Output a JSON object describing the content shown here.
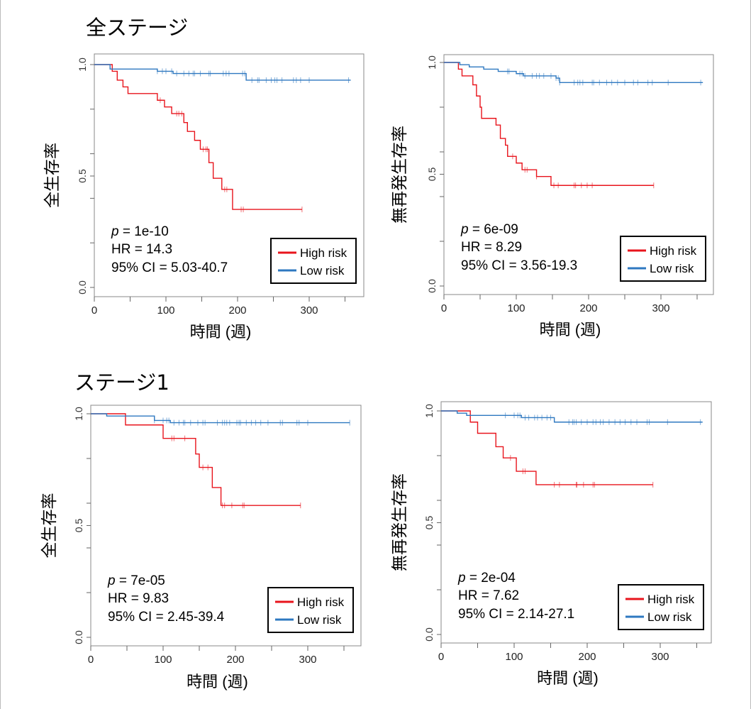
{
  "sections": [
    {
      "title": "全ステージ"
    },
    {
      "title": "ステージ1"
    }
  ],
  "colors": {
    "high": "#e8141c",
    "low": "#2e78c0",
    "frame": "#888888"
  },
  "chart_data": [
    {
      "type": "line",
      "subtype": "kaplan-meier",
      "xlabel": "時間 (週)",
      "ylabel": "全生存率",
      "xlim": [
        0,
        360
      ],
      "ylim": [
        0,
        1
      ],
      "xticks": [
        0,
        100,
        200,
        300
      ],
      "yticks": [
        "0.0",
        "0.5",
        "1.0"
      ],
      "stats": {
        "p": "p",
        "p_rest": " = 1e-10",
        "hr": "HR = 14.3",
        "ci": "95% CI = 5.03-40.7"
      },
      "legend": [
        "High risk",
        "Low risk"
      ],
      "legend_position": "bottom-right",
      "series": [
        {
          "name": "High risk",
          "end": 290,
          "steps": [
            [
              25,
              0.97
            ],
            [
              32,
              0.93
            ],
            [
              40,
              0.9
            ],
            [
              47,
              0.87
            ],
            [
              88,
              0.84
            ],
            [
              98,
              0.81
            ],
            [
              108,
              0.78
            ],
            [
              125,
              0.74
            ],
            [
              130,
              0.7
            ],
            [
              140,
              0.66
            ],
            [
              148,
              0.62
            ],
            [
              160,
              0.56
            ],
            [
              166,
              0.49
            ],
            [
              178,
              0.44
            ],
            [
              193,
              0.35
            ]
          ],
          "censored": [
            92,
            115,
            118,
            122,
            152,
            156,
            158,
            182,
            185,
            205,
            208,
            290
          ]
        },
        {
          "name": "Low risk",
          "end": 358,
          "steps": [
            [
              22,
              0.98
            ],
            [
              88,
              0.97
            ],
            [
              110,
              0.96
            ],
            [
              212,
              0.93
            ]
          ],
          "censored": [
            88,
            95,
            100,
            108,
            115,
            125,
            132,
            138,
            140,
            148,
            160,
            162,
            180,
            184,
            188,
            207,
            210,
            220,
            228,
            230,
            240,
            247,
            252,
            255,
            262,
            278,
            282,
            288,
            300,
            355
          ]
        }
      ]
    },
    {
      "type": "line",
      "subtype": "kaplan-meier",
      "xlabel": "時間 (週)",
      "ylabel": "無再発生存率",
      "xlim": [
        0,
        360
      ],
      "ylim": [
        0,
        1
      ],
      "xticks": [
        0,
        100,
        200,
        300
      ],
      "yticks": [
        "0.0",
        "0.5",
        "1.0"
      ],
      "stats": {
        "p": "p",
        "p_rest": " = 6e-09",
        "hr": "HR = 8.29",
        "ci": "95% CI = 3.56-19.3"
      },
      "legend": [
        "High risk",
        "Low risk"
      ],
      "legend_position": "bottom-right",
      "series": [
        {
          "name": "High risk",
          "end": 290,
          "steps": [
            [
              20,
              0.97
            ],
            [
              25,
              0.94
            ],
            [
              40,
              0.9
            ],
            [
              45,
              0.85
            ],
            [
              50,
              0.8
            ],
            [
              52,
              0.75
            ],
            [
              72,
              0.72
            ],
            [
              78,
              0.66
            ],
            [
              85,
              0.63
            ],
            [
              88,
              0.58
            ],
            [
              100,
              0.55
            ],
            [
              108,
              0.52
            ],
            [
              128,
              0.49
            ],
            [
              148,
              0.45
            ]
          ],
          "censored": [
            95,
            112,
            115,
            128,
            152,
            158,
            180,
            182,
            190,
            198,
            205,
            290
          ]
        },
        {
          "name": "Low risk",
          "end": 358,
          "steps": [
            [
              22,
              0.99
            ],
            [
              35,
              0.98
            ],
            [
              55,
              0.97
            ],
            [
              75,
              0.96
            ],
            [
              100,
              0.95
            ],
            [
              110,
              0.94
            ],
            [
              155,
              0.93
            ],
            [
              160,
              0.91
            ]
          ],
          "censored": [
            88,
            90,
            105,
            108,
            112,
            122,
            128,
            132,
            138,
            148,
            155,
            158,
            160,
            180,
            185,
            188,
            192,
            205,
            207,
            215,
            225,
            232,
            240,
            250,
            262,
            268,
            282,
            288,
            310,
            355
          ]
        }
      ]
    },
    {
      "type": "line",
      "subtype": "kaplan-meier",
      "xlabel": "時間 (週)",
      "ylabel": "全生存率",
      "xlim": [
        0,
        360
      ],
      "ylim": [
        0,
        1
      ],
      "xticks": [
        0,
        100,
        200,
        300
      ],
      "yticks": [
        "0.0",
        "0.5",
        "1.0"
      ],
      "stats": {
        "p": "p",
        "p_rest": " = 7e-05",
        "hr": "HR = 9.83",
        "ci": "95% CI = 2.45-39.4"
      },
      "legend": [
        "High risk",
        "Low risk"
      ],
      "legend_position": "bottom-right",
      "series": [
        {
          "name": "High risk",
          "end": 290,
          "steps": [
            [
              48,
              0.95
            ],
            [
              100,
              0.89
            ],
            [
              145,
              0.82
            ],
            [
              150,
              0.76
            ],
            [
              168,
              0.67
            ],
            [
              180,
              0.59
            ]
          ],
          "censored": [
            112,
            115,
            130,
            155,
            162,
            182,
            185,
            195,
            210,
            212,
            290
          ]
        },
        {
          "name": "Low risk",
          "end": 358,
          "steps": [
            [
              22,
              0.99
            ],
            [
              88,
              0.97
            ],
            [
              110,
              0.96
            ]
          ],
          "censored": [
            88,
            100,
            105,
            108,
            115,
            122,
            128,
            130,
            138,
            148,
            155,
            158,
            175,
            182,
            185,
            188,
            192,
            202,
            205,
            207,
            215,
            222,
            228,
            235,
            245,
            262,
            265,
            285,
            288,
            300,
            358
          ]
        }
      ]
    },
    {
      "type": "line",
      "subtype": "kaplan-meier",
      "xlabel": "時間 (週)",
      "ylabel": "無再発生存率",
      "xlim": [
        0,
        360
      ],
      "ylim": [
        0,
        1
      ],
      "xticks": [
        0,
        100,
        200,
        300
      ],
      "yticks": [
        "0.0",
        "0.5",
        "1.0"
      ],
      "stats": {
        "p": "p",
        "p_rest": " = 2e-04",
        "hr": "HR = 7.62",
        "ci": "95% CI = 2.14-27.1"
      },
      "legend": [
        "High risk",
        "Low risk"
      ],
      "legend_position": "bottom-right",
      "series": [
        {
          "name": "High risk",
          "end": 290,
          "steps": [
            [
              40,
              0.95
            ],
            [
              50,
              0.9
            ],
            [
              75,
              0.84
            ],
            [
              85,
              0.79
            ],
            [
              103,
              0.73
            ],
            [
              130,
              0.67
            ]
          ],
          "censored": [
            95,
            112,
            115,
            155,
            162,
            185,
            186,
            195,
            208,
            210,
            290
          ]
        },
        {
          "name": "Low risk",
          "end": 358,
          "steps": [
            [
              22,
              0.99
            ],
            [
              35,
              0.98
            ],
            [
              110,
              0.97
            ],
            [
              155,
              0.95
            ]
          ],
          "censored": [
            88,
            100,
            105,
            108,
            115,
            120,
            128,
            132,
            138,
            145,
            150,
            175,
            180,
            182,
            185,
            192,
            200,
            208,
            212,
            218,
            222,
            230,
            238,
            245,
            252,
            260,
            268,
            282,
            285,
            310,
            355
          ]
        }
      ]
    }
  ]
}
